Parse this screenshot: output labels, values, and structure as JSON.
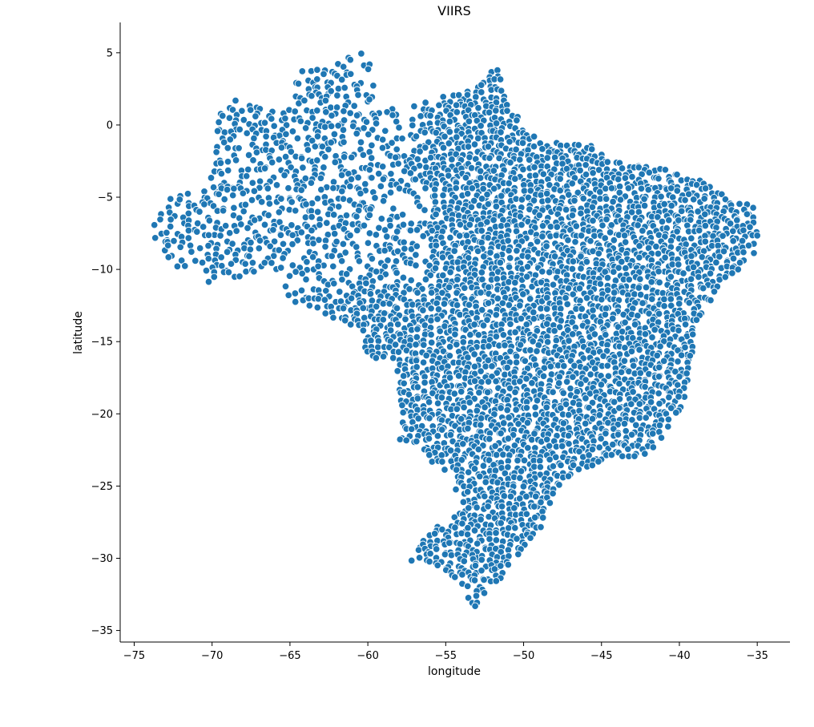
{
  "chart_data": {
    "type": "scatter",
    "title": "VIIRS",
    "xlabel": "longitude",
    "ylabel": "latitude",
    "xlim": [
      -75.9,
      -32.9
    ],
    "ylim": [
      -35.8,
      7.1
    ],
    "xticks": [
      -75,
      -70,
      -65,
      -60,
      -55,
      -50,
      -45,
      -40,
      -35
    ],
    "yticks": [
      5,
      0,
      -5,
      -10,
      -15,
      -20,
      -25,
      -30,
      -35
    ],
    "xtick_labels": [
      "−75",
      "−70",
      "−65",
      "−60",
      "−55",
      "−50",
      "−45",
      "−40",
      "−35"
    ],
    "ytick_labels": [
      "5",
      "0",
      "−5",
      "−10",
      "−15",
      "−20",
      "−25",
      "−30",
      "−35"
    ],
    "grid": false,
    "marker_color": "#1f77b4",
    "marker_edge_color": "#ffffff",
    "series": [
      {
        "region_outline": [
          [
            -73.9,
            -7.3
          ],
          [
            -72.8,
            -5.0
          ],
          [
            -70.3,
            -4.4
          ],
          [
            -69.7,
            -1.0
          ],
          [
            -69.6,
            1.6
          ],
          [
            -67.2,
            1.9
          ],
          [
            -66.0,
            0.9
          ],
          [
            -64.7,
            1.4
          ],
          [
            -64.6,
            3.9
          ],
          [
            -62.7,
            3.9
          ],
          [
            -61.8,
            4.3
          ],
          [
            -60.6,
            5.1
          ],
          [
            -59.8,
            4.4
          ],
          [
            -59.7,
            3.2
          ],
          [
            -59.5,
            1.5
          ],
          [
            -58.1,
            1.3
          ],
          [
            -56.0,
            1.9
          ],
          [
            -54.0,
            2.1
          ],
          [
            -51.7,
            4.0
          ],
          [
            -51.0,
            2.0
          ],
          [
            -50.0,
            0.0
          ],
          [
            -48.7,
            -1.0
          ],
          [
            -46.0,
            -1.2
          ],
          [
            -44.0,
            -2.5
          ],
          [
            -41.0,
            -3.0
          ],
          [
            -38.5,
            -3.7
          ],
          [
            -37.0,
            -5.0
          ],
          [
            -35.2,
            -5.5
          ],
          [
            -34.9,
            -7.5
          ],
          [
            -35.2,
            -9.0
          ],
          [
            -37.2,
            -11.0
          ],
          [
            -38.4,
            -12.8
          ],
          [
            -38.9,
            -14.0
          ],
          [
            -39.1,
            -16.0
          ],
          [
            -39.4,
            -18.0
          ],
          [
            -39.9,
            -19.7
          ],
          [
            -41.0,
            -21.5
          ],
          [
            -42.0,
            -22.9
          ],
          [
            -44.5,
            -23.1
          ],
          [
            -46.5,
            -24.0
          ],
          [
            -48.1,
            -25.5
          ],
          [
            -48.6,
            -27.5
          ],
          [
            -49.2,
            -28.6
          ],
          [
            -50.4,
            -30.2
          ],
          [
            -51.3,
            -31.2
          ],
          [
            -52.2,
            -32.2
          ],
          [
            -53.2,
            -33.7
          ],
          [
            -53.7,
            -33.0
          ],
          [
            -53.4,
            -32.4
          ],
          [
            -55.1,
            -31.0
          ],
          [
            -56.5,
            -30.2
          ],
          [
            -57.4,
            -30.2
          ],
          [
            -55.9,
            -28.0
          ],
          [
            -54.6,
            -27.3
          ],
          [
            -53.8,
            -26.0
          ],
          [
            -54.5,
            -25.3
          ],
          [
            -54.6,
            -24.0
          ],
          [
            -55.5,
            -23.8
          ],
          [
            -56.9,
            -22.3
          ],
          [
            -58.0,
            -22.1
          ],
          [
            -57.8,
            -20.0
          ],
          [
            -58.1,
            -17.3
          ],
          [
            -58.2,
            -16.3
          ],
          [
            -60.2,
            -16.2
          ],
          [
            -60.2,
            -14.3
          ],
          [
            -61.8,
            -13.6
          ],
          [
            -63.5,
            -12.6
          ],
          [
            -64.9,
            -12.4
          ],
          [
            -65.3,
            -11.2
          ],
          [
            -65.5,
            -10.3
          ],
          [
            -66.7,
            -9.9
          ],
          [
            -68.0,
            -10.6
          ],
          [
            -69.4,
            -10.9
          ],
          [
            -70.5,
            -10.9
          ],
          [
            -70.5,
            -9.5
          ],
          [
            -72.0,
            -10.0
          ],
          [
            -73.3,
            -9.5
          ],
          [
            -73.5,
            -8.3
          ]
        ]
      }
    ]
  }
}
